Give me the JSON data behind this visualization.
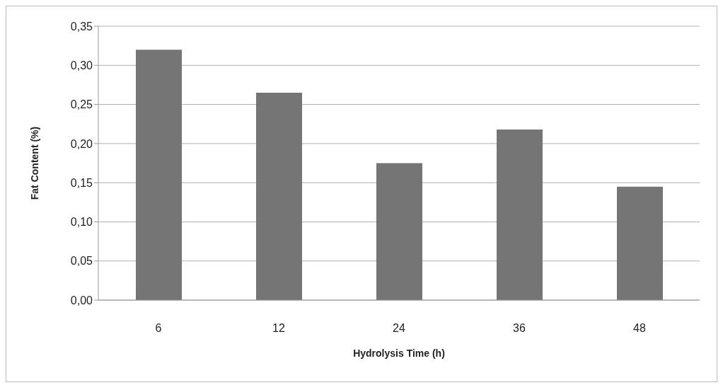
{
  "chart_data": {
    "type": "bar",
    "xlabel": "Hydrolysis Time (h)",
    "ylabel": "Fat Content (%)",
    "categories": [
      "6",
      "12",
      "24",
      "36",
      "48"
    ],
    "values": [
      0.32,
      0.265,
      0.175,
      0.218,
      0.145
    ],
    "color": "#757575",
    "ylim": [
      0,
      0.35
    ],
    "yticks": [
      {
        "value": 0,
        "label": "0,00"
      },
      {
        "value": 0.05,
        "label": "0,05"
      },
      {
        "value": 0.1,
        "label": "0,10"
      },
      {
        "value": 0.15,
        "label": "0,15"
      },
      {
        "value": 0.2,
        "label": "0,20"
      },
      {
        "value": 0.25,
        "label": "0,25"
      },
      {
        "value": 0.3,
        "label": "0,30"
      },
      {
        "value": 0.35,
        "label": "0,35"
      }
    ],
    "grid": "y"
  }
}
